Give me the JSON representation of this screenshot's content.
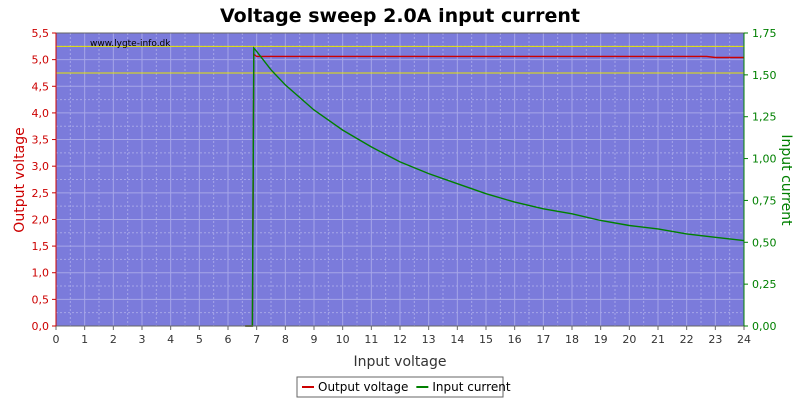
{
  "chart_data": {
    "type": "line",
    "title": "Voltage sweep 2.0A input current",
    "watermark": "www.lygte-info.dk",
    "xlabel": "Input voltage",
    "ylabel_left": "Output voltage",
    "ylabel_right": "Input current",
    "xlim": [
      0,
      24
    ],
    "ylim_left": [
      0,
      5.5
    ],
    "ylim_right": [
      0,
      1.75
    ],
    "x_ticks": [
      "0",
      "1",
      "2",
      "3",
      "4",
      "5",
      "6",
      "7",
      "8",
      "9",
      "10",
      "11",
      "12",
      "13",
      "14",
      "15",
      "16",
      "17",
      "18",
      "19",
      "20",
      "21",
      "22",
      "23",
      "24"
    ],
    "y_left_ticks": [
      "0,0",
      "0,5",
      "1,0",
      "1,5",
      "2,0",
      "2,5",
      "3,0",
      "3,5",
      "4,0",
      "4,5",
      "5,0",
      "5,5"
    ],
    "y_right_ticks": [
      "0,00",
      "0,25",
      "0,50",
      "0,75",
      "1,00",
      "1,25",
      "1,50",
      "1,75"
    ],
    "reference_lines_left": [
      5.25,
      4.75
    ],
    "grid": true,
    "legend_position": "bottom-center",
    "colors": {
      "plot_bg": "#7b7bdb",
      "grid": "#a6a6e8",
      "output_voltage": "#cc0000",
      "input_current": "#008000",
      "reference": "#e6e600",
      "left_axis": "#cc0000",
      "right_axis": "#008000"
    },
    "series": [
      {
        "name": "Output voltage",
        "axis": "left",
        "x": [
          6.6,
          6.85,
          6.86,
          6.9,
          7.0,
          7.2,
          8,
          10,
          12,
          14,
          16,
          18,
          20,
          22,
          22.7,
          23,
          24
        ],
        "y": [
          0.0,
          0.0,
          1.0,
          5.1,
          5.06,
          5.06,
          5.06,
          5.06,
          5.06,
          5.06,
          5.06,
          5.06,
          5.06,
          5.06,
          5.06,
          5.04,
          5.04
        ]
      },
      {
        "name": "Input current",
        "axis": "right",
        "x": [
          6.6,
          6.85,
          6.9,
          7.0,
          7.5,
          8,
          9,
          10,
          11,
          12,
          13,
          14,
          15,
          16,
          17,
          18,
          19,
          20,
          21,
          22,
          23,
          24
        ],
        "y": [
          0.0,
          0.0,
          1.66,
          1.64,
          1.53,
          1.44,
          1.29,
          1.17,
          1.07,
          0.98,
          0.91,
          0.85,
          0.79,
          0.74,
          0.7,
          0.67,
          0.63,
          0.6,
          0.58,
          0.55,
          0.53,
          0.51
        ]
      }
    ]
  }
}
